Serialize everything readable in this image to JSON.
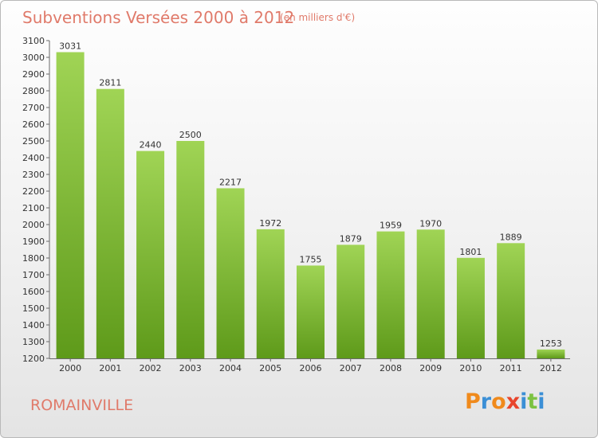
{
  "header": {
    "title": "Subventions Versées 2000 à 2012",
    "subtitle": "(en milliers d'€)"
  },
  "footer": {
    "city": "ROMAINVILLE",
    "logo_text": "Proxiti"
  },
  "colors": {
    "bar_light": "#a0d455",
    "bar_dark": "#5e9a1a",
    "title": "#e07a6a",
    "logo_letters": [
      "#f08a1c",
      "#3b8fd6",
      "#f08a1c",
      "#e8452c",
      "#3b8fd6",
      "#7cc242",
      "#3b8fd6"
    ]
  },
  "chart_data": {
    "type": "bar",
    "title": "Subventions Versées 2000 à 2012",
    "subtitle": "(en milliers d'€)",
    "categories": [
      "2000",
      "2001",
      "2002",
      "2003",
      "2004",
      "2005",
      "2006",
      "2007",
      "2008",
      "2009",
      "2010",
      "2011",
      "2012"
    ],
    "values": [
      3031,
      2811,
      2440,
      2500,
      2217,
      1972,
      1755,
      1879,
      1959,
      1970,
      1801,
      1889,
      1253
    ],
    "ylim": [
      1200,
      3100
    ],
    "yticks": [
      1200,
      1300,
      1400,
      1500,
      1600,
      1700,
      1800,
      1900,
      2000,
      2100,
      2200,
      2300,
      2400,
      2500,
      2600,
      2700,
      2800,
      2900,
      3000,
      3100
    ],
    "grid": false,
    "legend": "none",
    "xlabel": "",
    "ylabel": ""
  }
}
